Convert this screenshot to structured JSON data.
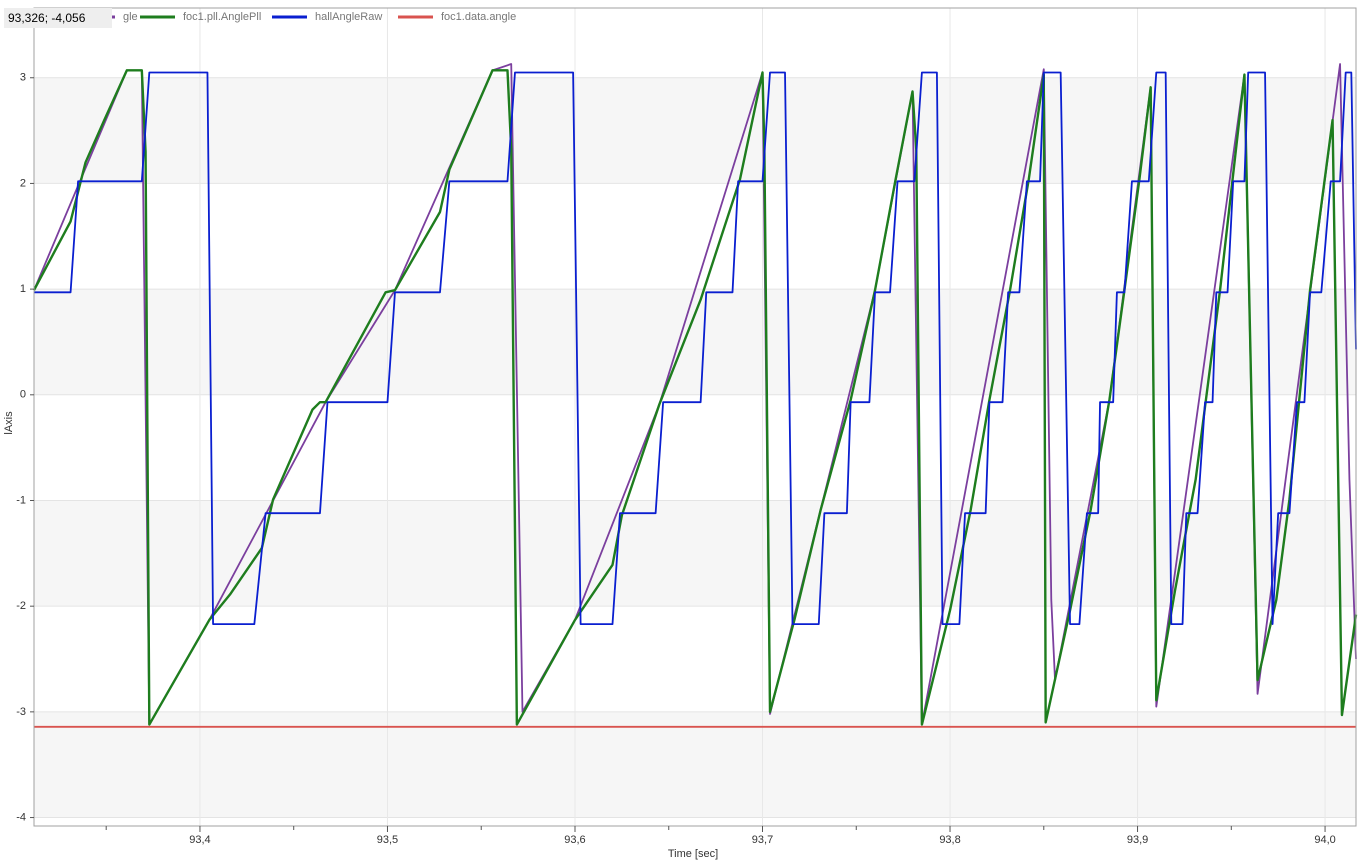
{
  "chart_data": {
    "type": "line",
    "cursor_readout": "93,326; -4,056",
    "xlabel": "Time [sec]",
    "ylabel": "lAxis",
    "xlim": [
      93.3115,
      94.0165
    ],
    "ylim": [
      -4.08,
      3.66
    ],
    "xticks": [
      {
        "value": 93.4,
        "label": "93,4"
      },
      {
        "value": 93.5,
        "label": "93,5"
      },
      {
        "value": 93.6,
        "label": "93,6"
      },
      {
        "value": 93.7,
        "label": "93,7"
      },
      {
        "value": 93.8,
        "label": "93,8"
      },
      {
        "value": 93.9,
        "label": "93,9"
      },
      {
        "value": 94.0,
        "label": "94,0"
      }
    ],
    "xminorticks": [
      93.35,
      93.45,
      93.55,
      93.65,
      93.75,
      93.85,
      93.95
    ],
    "yticks": [
      -4,
      -3,
      -2,
      -1,
      0,
      1,
      2,
      3
    ],
    "grid": true,
    "legend": "top",
    "series": [
      {
        "name": "gle",
        "color": "#7b3f9e",
        "x": [
          93.3115,
          93.361,
          93.369,
          93.373,
          93.405,
          93.467,
          93.504,
          93.556,
          93.566,
          93.572,
          93.6,
          93.645,
          93.7,
          93.704,
          93.76,
          93.78,
          93.785,
          93.85,
          93.854,
          93.856,
          93.885,
          93.907,
          93.91,
          93.957,
          93.964,
          94.008,
          94.013,
          94.0165
        ],
        "values": [
          0.99,
          3.07,
          3.07,
          -3.12,
          -2.13,
          -0.07,
          0.99,
          3.07,
          3.13,
          -3.0,
          -2.13,
          -0.09,
          3.05,
          -3.02,
          0.99,
          2.87,
          -3.12,
          3.08,
          -1.94,
          -2.7,
          -0.05,
          2.91,
          -2.95,
          3.03,
          -2.83,
          3.13,
          -0.8,
          -2.5
        ]
      },
      {
        "name": "foc1.pll.AnglePll",
        "color": "#1e7d1e",
        "x": [
          93.3115,
          93.331,
          93.339,
          93.349,
          93.361,
          93.369,
          93.371,
          93.373,
          93.405,
          93.416,
          93.433,
          93.439,
          93.46,
          93.464,
          93.467,
          93.499,
          93.504,
          93.528,
          93.533,
          93.556,
          93.564,
          93.566,
          93.569,
          93.6,
          93.62,
          93.625,
          93.645,
          93.667,
          93.688,
          93.7,
          93.701,
          93.704,
          93.717,
          93.731,
          93.747,
          93.76,
          93.771,
          93.78,
          93.782,
          93.785,
          93.8,
          93.811,
          93.821,
          93.832,
          93.842,
          93.85,
          93.851,
          93.864,
          93.875,
          93.885,
          93.893,
          93.901,
          93.907,
          93.91,
          93.92,
          93.931,
          93.944,
          93.957,
          93.964,
          93.974,
          93.981,
          93.992,
          94.004,
          94.009,
          94.0165
        ],
        "values": [
          0.99,
          1.64,
          2.2,
          2.6,
          3.07,
          3.07,
          2.3,
          -3.12,
          -2.13,
          -1.89,
          -1.45,
          -0.99,
          -0.14,
          -0.07,
          -0.07,
          0.97,
          0.99,
          1.73,
          2.13,
          3.07,
          3.07,
          2.32,
          -3.12,
          -2.13,
          -1.61,
          -1.14,
          -0.09,
          0.9,
          2.04,
          3.05,
          2.32,
          -3.0,
          -2.13,
          -1.09,
          -0.05,
          0.99,
          2.04,
          2.87,
          2.32,
          -3.12,
          -2.04,
          -1.09,
          -0.05,
          0.99,
          2.04,
          3.03,
          -3.1,
          -2.04,
          -1.09,
          -0.05,
          0.99,
          2.04,
          2.91,
          -2.89,
          -1.85,
          -0.8,
          0.99,
          3.03,
          -2.7,
          -1.94,
          -0.99,
          0.99,
          2.6,
          -3.03,
          -2.08
        ]
      },
      {
        "name": "hallAngleRaw",
        "color": "#0a1fd0",
        "x": [
          93.3115,
          93.331,
          93.335,
          93.369,
          93.373,
          93.404,
          93.407,
          93.429,
          93.435,
          93.464,
          93.468,
          93.5,
          93.504,
          93.528,
          93.533,
          93.564,
          93.568,
          93.599,
          93.603,
          93.62,
          93.624,
          93.643,
          93.647,
          93.667,
          93.67,
          93.684,
          93.687,
          93.7,
          93.704,
          93.712,
          93.716,
          93.73,
          93.733,
          93.745,
          93.747,
          93.757,
          93.76,
          93.768,
          93.772,
          93.781,
          93.785,
          93.793,
          93.796,
          93.805,
          93.808,
          93.819,
          93.821,
          93.828,
          93.831,
          93.837,
          93.841,
          93.848,
          93.85,
          93.859,
          93.864,
          93.869,
          93.873,
          93.879,
          93.88,
          93.887,
          93.889,
          93.893,
          93.897,
          93.906,
          93.91,
          93.915,
          93.918,
          93.924,
          93.926,
          93.932,
          93.936,
          93.94,
          93.942,
          93.948,
          93.951,
          93.957,
          93.959,
          93.968,
          93.972,
          93.975,
          93.981,
          93.985,
          93.989,
          93.992,
          93.998,
          94.003,
          94.008,
          94.011,
          94.014,
          94.0165
        ],
        "values": [
          0.97,
          0.97,
          2.02,
          2.02,
          3.05,
          3.05,
          -2.17,
          -2.17,
          -1.12,
          -1.12,
          -0.07,
          -0.07,
          0.97,
          0.97,
          2.02,
          2.02,
          3.05,
          3.05,
          -2.17,
          -2.17,
          -1.12,
          -1.12,
          -0.07,
          -0.07,
          0.97,
          0.97,
          2.02,
          2.02,
          3.05,
          3.05,
          -2.17,
          -2.17,
          -1.12,
          -1.12,
          -0.07,
          -0.07,
          0.97,
          0.97,
          2.02,
          2.02,
          3.05,
          3.05,
          -2.17,
          -2.17,
          -1.12,
          -1.12,
          -0.07,
          -0.07,
          0.97,
          0.97,
          2.02,
          2.02,
          3.05,
          3.05,
          -2.17,
          -2.17,
          -1.12,
          -1.12,
          -0.07,
          -0.07,
          0.97,
          0.97,
          2.02,
          2.02,
          3.05,
          3.05,
          -2.17,
          -2.17,
          -1.12,
          -1.12,
          -0.07,
          -0.07,
          0.97,
          0.97,
          2.02,
          2.02,
          3.05,
          3.05,
          -2.17,
          -1.12,
          -1.12,
          -0.07,
          -0.07,
          0.97,
          0.97,
          2.02,
          2.02,
          3.05,
          3.05,
          0.43
        ]
      },
      {
        "name": "foc1.data.angle",
        "color": "#d9534f",
        "x": [
          93.3115,
          94.0165
        ],
        "values": [
          -3.1416,
          -3.1416
        ]
      }
    ]
  }
}
